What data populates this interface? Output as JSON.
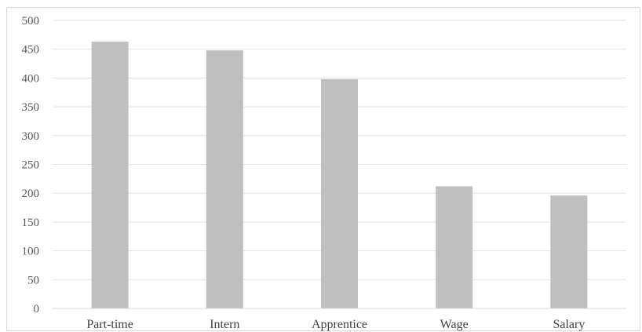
{
  "chart_data": {
    "type": "bar",
    "title": "",
    "xlabel": "",
    "ylabel": "",
    "categories": [
      "Part-time",
      "Intern",
      "Apprentice",
      "Wage",
      "Salary"
    ],
    "values": [
      463,
      448,
      398,
      212,
      196
    ],
    "ylim": [
      0,
      500
    ],
    "yticks": [
      "0",
      "50",
      "100",
      "150",
      "200",
      "250",
      "300",
      "350",
      "400",
      "450",
      "500"
    ],
    "grid": true,
    "legend": "none",
    "bar_color": "#bfbfbf",
    "grid_color": "#e3e3e3",
    "axis_color": "#d9d9d9"
  }
}
